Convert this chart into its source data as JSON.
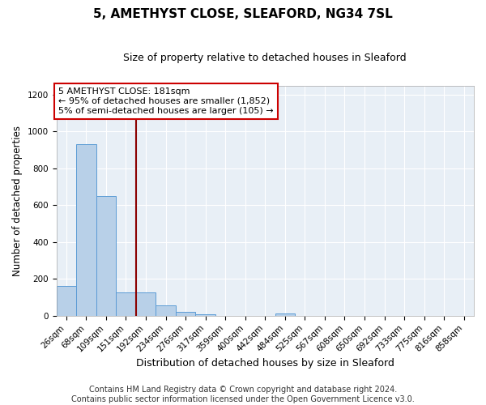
{
  "title": "5, AMETHYST CLOSE, SLEAFORD, NG34 7SL",
  "subtitle": "Size of property relative to detached houses in Sleaford",
  "xlabel": "Distribution of detached houses by size in Sleaford",
  "ylabel": "Number of detached properties",
  "categories": [
    "26sqm",
    "68sqm",
    "109sqm",
    "151sqm",
    "192sqm",
    "234sqm",
    "276sqm",
    "317sqm",
    "359sqm",
    "400sqm",
    "442sqm",
    "484sqm",
    "525sqm",
    "567sqm",
    "608sqm",
    "650sqm",
    "692sqm",
    "733sqm",
    "775sqm",
    "816sqm",
    "858sqm"
  ],
  "values": [
    163,
    930,
    648,
    128,
    128,
    55,
    20,
    10,
    0,
    0,
    0,
    12,
    0,
    0,
    0,
    0,
    0,
    0,
    0,
    0,
    0
  ],
  "bar_color": "#b8d0e8",
  "bar_edgecolor": "#5b9bd5",
  "background_color": "#e8eff6",
  "grid_color": "#ffffff",
  "vline_x": 3.5,
  "vline_color": "#8b0000",
  "annotation_text": "5 AMETHYST CLOSE: 181sqm\n← 95% of detached houses are smaller (1,852)\n5% of semi-detached houses are larger (105) →",
  "annotation_box_color": "#cc0000",
  "ylim": [
    0,
    1250
  ],
  "yticks": [
    0,
    200,
    400,
    600,
    800,
    1000,
    1200
  ],
  "footnote": "Contains HM Land Registry data © Crown copyright and database right 2024.\nContains public sector information licensed under the Open Government Licence v3.0.",
  "title_fontsize": 11,
  "subtitle_fontsize": 9,
  "xlabel_fontsize": 9,
  "ylabel_fontsize": 8.5,
  "tick_fontsize": 7.5,
  "annotation_fontsize": 8,
  "footnote_fontsize": 7
}
